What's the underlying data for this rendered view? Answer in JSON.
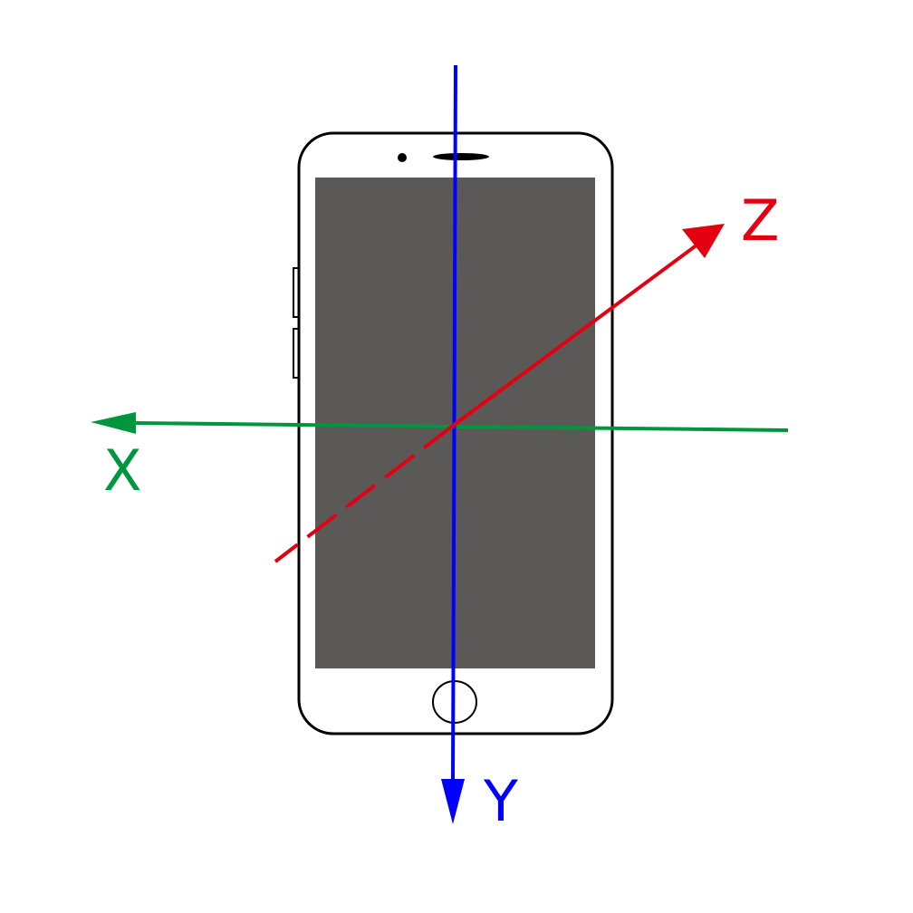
{
  "diagram": {
    "axes": [
      {
        "id": "x",
        "label": "X",
        "color": "#00963F"
      },
      {
        "id": "y",
        "label": "Y",
        "color": "#0000FF"
      },
      {
        "id": "z",
        "label": "Z",
        "color": "#E30010"
      }
    ],
    "phone": {
      "body_color": "#ffffff",
      "outline_color": "#000000",
      "screen_color": "#5A5958"
    }
  }
}
